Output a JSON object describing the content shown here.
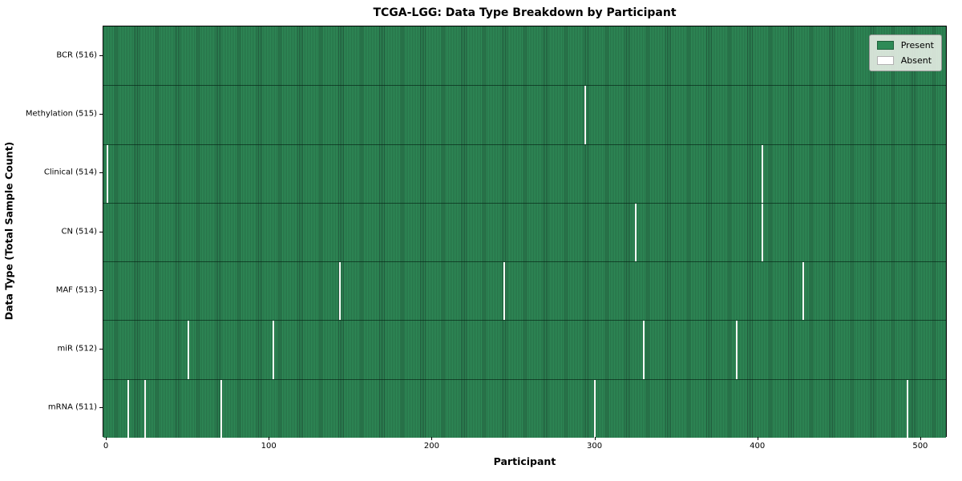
{
  "figure": {
    "title": "TCGA-LGG: Data Type Breakdown by Participant",
    "xlabel": "Participant",
    "ylabel": "Data Type (Total Sample Count)"
  },
  "chart_data": {
    "type": "heatmap",
    "title": "TCGA-LGG: Data Type Breakdown by Participant",
    "xlabel": "Participant",
    "ylabel": "Data Type (Total Sample Count)",
    "x_ticks": [
      0,
      100,
      200,
      300,
      400,
      500
    ],
    "xlim": [
      -2,
      516.3
    ],
    "n_participants": 516,
    "grid": false,
    "legend_position": "upper right",
    "colors": {
      "present": "#2e8b57",
      "present_stripe_dark": "#20573a",
      "absent": "#f7f7f5",
      "legend_background": "#ebf0e8",
      "plot_border": "#000000"
    },
    "legend_items": [
      {
        "label": "Present",
        "color": "#2e8b57"
      },
      {
        "label": "Absent",
        "color": "#ffffff"
      }
    ],
    "rows": [
      {
        "data_type": "BCR",
        "label": "BCR (516)",
        "total_samples": 516,
        "absent_participants": []
      },
      {
        "data_type": "Methylation",
        "label": "Methylation (515)",
        "total_samples": 515,
        "absent_participants": [
          294
        ]
      },
      {
        "data_type": "Clinical",
        "label": "Clinical (514)",
        "total_samples": 514,
        "absent_participants": [
          0,
          403
        ]
      },
      {
        "data_type": "CN",
        "label": "CN (514)",
        "total_samples": 514,
        "absent_participants": [
          325,
          403
        ]
      },
      {
        "data_type": "MAF",
        "label": "MAF (513)",
        "total_samples": 513,
        "absent_participants": [
          143,
          244,
          428
        ]
      },
      {
        "data_type": "miR",
        "label": "miR (512)",
        "total_samples": 512,
        "absent_participants": [
          50,
          102,
          330,
          387
        ]
      },
      {
        "data_type": "mRNA",
        "label": "mRNA (511)",
        "total_samples": 511,
        "absent_participants": [
          13,
          23,
          70,
          300,
          492
        ]
      }
    ]
  }
}
